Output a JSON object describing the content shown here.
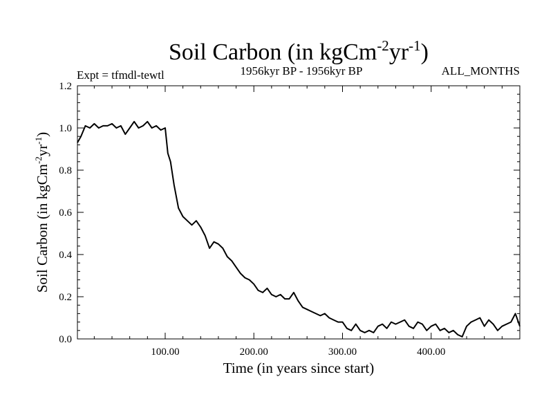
{
  "chart_data": {
    "type": "line",
    "title": {
      "prefix": "Soil Carbon (in kgCm",
      "exp1": "-2",
      "mid": "yr",
      "exp2": "-1",
      "suffix": ")"
    },
    "subtitle_left": "Expt = tfmdl-tewtl",
    "subtitle_center": "1956kyr BP - 1956kyr BP",
    "subtitle_right": "ALL_MONTHS",
    "xlabel": "Time (in years since start)",
    "ylabel": {
      "prefix": "Soil Carbon (in kgCm",
      "exp1": "-2",
      "mid": "yr",
      "exp2": "-1",
      "suffix": ")"
    },
    "xlim": [
      1,
      500
    ],
    "ylim": [
      0.0,
      1.2
    ],
    "x_ticks": [
      {
        "value": 100,
        "label": "100.00"
      },
      {
        "value": 200,
        "label": "200.00"
      },
      {
        "value": 300,
        "label": "300.00"
      },
      {
        "value": 400,
        "label": "400.00"
      }
    ],
    "y_ticks": [
      {
        "value": 0.0,
        "label": "0.0"
      },
      {
        "value": 0.2,
        "label": "0.2"
      },
      {
        "value": 0.4,
        "label": "0.4"
      },
      {
        "value": 0.6,
        "label": "0.6"
      },
      {
        "value": 0.8,
        "label": "0.8"
      },
      {
        "value": 1.0,
        "label": "1.0"
      },
      {
        "value": 1.2,
        "label": "1.2"
      }
    ],
    "series": [
      {
        "name": "Soil Carbon",
        "color": "#000000",
        "x": [
          1,
          5,
          10,
          15,
          20,
          25,
          30,
          35,
          40,
          45,
          50,
          55,
          60,
          65,
          70,
          75,
          80,
          85,
          90,
          95,
          100,
          103,
          106,
          110,
          115,
          120,
          125,
          130,
          135,
          140,
          145,
          150,
          155,
          160,
          165,
          170,
          175,
          180,
          185,
          190,
          195,
          200,
          205,
          210,
          215,
          220,
          225,
          230,
          235,
          240,
          245,
          250,
          255,
          260,
          265,
          270,
          275,
          280,
          285,
          290,
          295,
          300,
          305,
          310,
          315,
          320,
          325,
          330,
          335,
          340,
          345,
          350,
          355,
          360,
          365,
          370,
          375,
          380,
          385,
          390,
          395,
          400,
          405,
          410,
          415,
          420,
          425,
          430,
          435,
          440,
          445,
          450,
          455,
          460,
          465,
          470,
          475,
          480,
          485,
          490,
          495,
          500
        ],
        "values": [
          0.93,
          0.96,
          1.01,
          1.0,
          1.02,
          1.0,
          1.01,
          1.01,
          1.02,
          1.0,
          1.01,
          0.97,
          1.0,
          1.03,
          1.0,
          1.01,
          1.03,
          1.0,
          1.01,
          0.99,
          1.0,
          0.88,
          0.84,
          0.73,
          0.62,
          0.58,
          0.56,
          0.54,
          0.56,
          0.53,
          0.49,
          0.43,
          0.46,
          0.45,
          0.43,
          0.39,
          0.37,
          0.34,
          0.31,
          0.29,
          0.28,
          0.26,
          0.23,
          0.22,
          0.24,
          0.21,
          0.2,
          0.21,
          0.19,
          0.19,
          0.22,
          0.18,
          0.15,
          0.14,
          0.13,
          0.12,
          0.11,
          0.12,
          0.1,
          0.09,
          0.08,
          0.08,
          0.05,
          0.04,
          0.07,
          0.04,
          0.03,
          0.04,
          0.03,
          0.06,
          0.07,
          0.05,
          0.08,
          0.07,
          0.08,
          0.09,
          0.06,
          0.05,
          0.08,
          0.07,
          0.04,
          0.06,
          0.07,
          0.04,
          0.05,
          0.03,
          0.04,
          0.02,
          0.01,
          0.06,
          0.08,
          0.09,
          0.1,
          0.06,
          0.09,
          0.07,
          0.04,
          0.06,
          0.07,
          0.08,
          0.12,
          0.06
        ]
      }
    ],
    "grid": false
  }
}
